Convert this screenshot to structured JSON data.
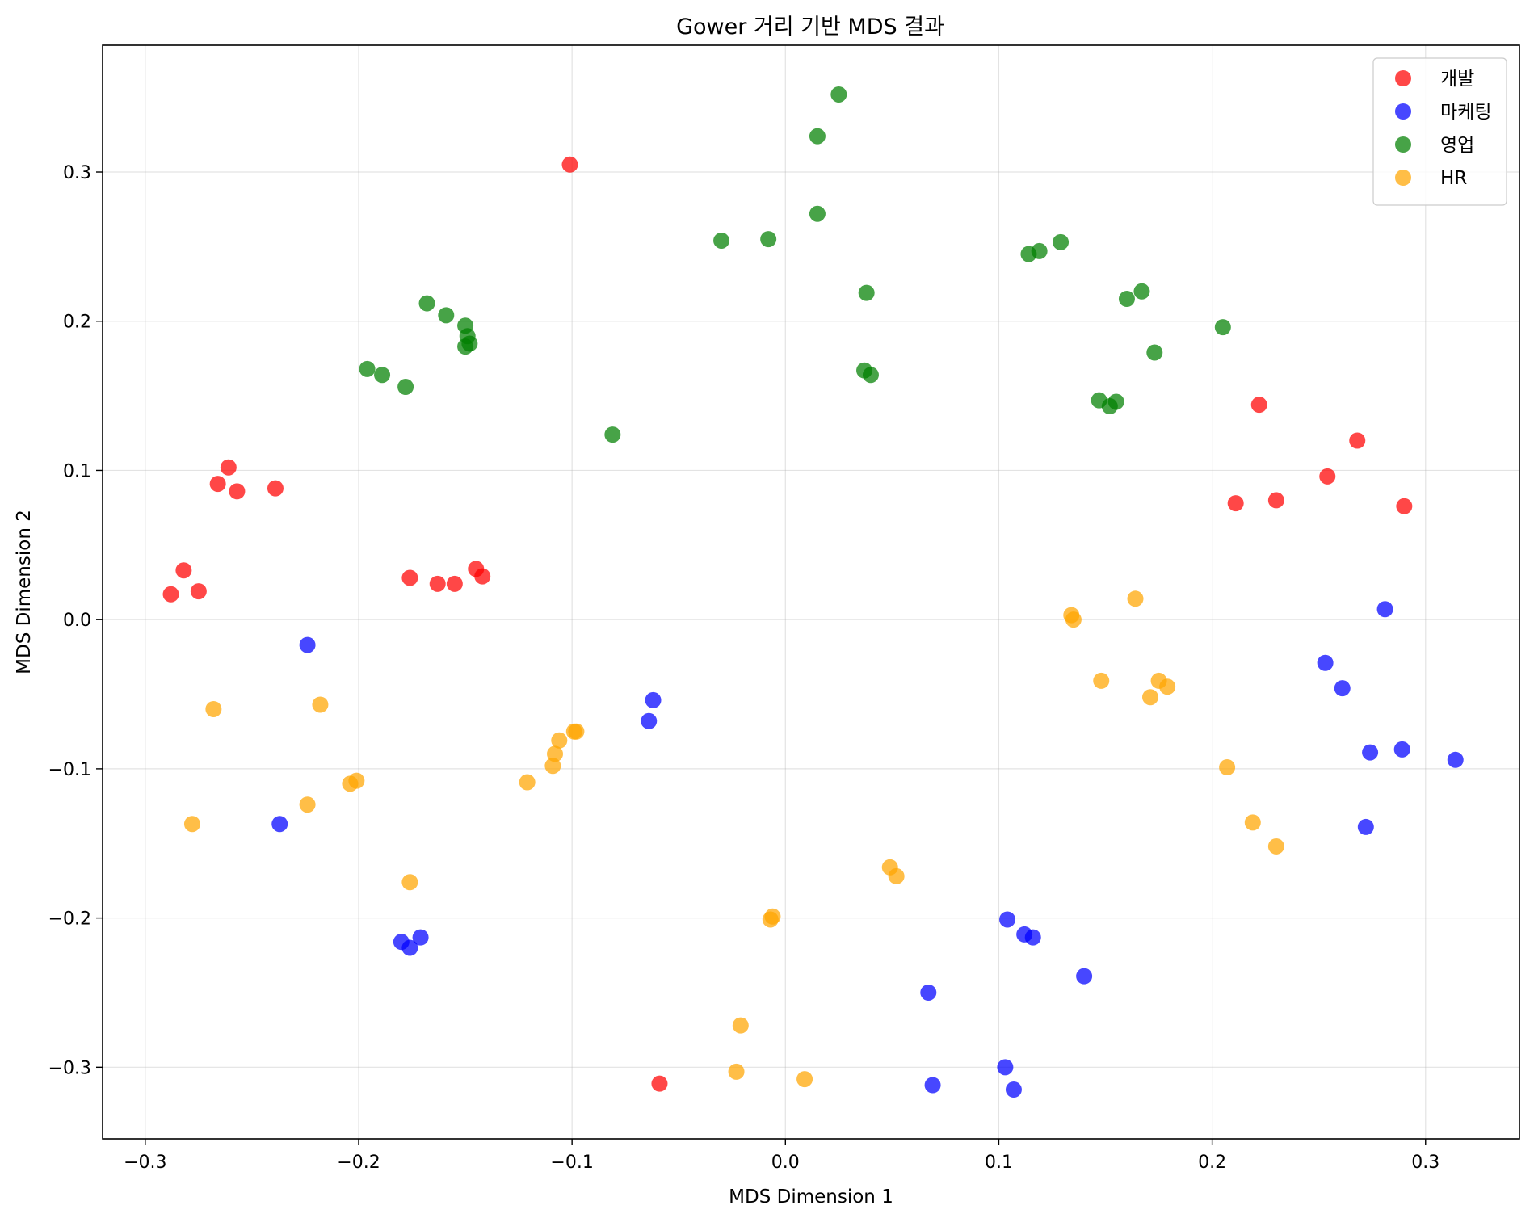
{
  "chart_data": {
    "type": "scatter",
    "title": "Gower 거리 기반 MDS 결과",
    "xlabel": "MDS Dimension 1",
    "ylabel": "MDS Dimension 2",
    "xlim": [
      -0.32,
      0.344
    ],
    "ylim": [
      -0.348,
      0.385
    ],
    "xticks": [
      -0.3,
      -0.2,
      -0.1,
      0.0,
      0.1,
      0.2,
      0.3
    ],
    "yticks": [
      -0.3,
      -0.2,
      -0.1,
      0.0,
      0.1,
      0.2,
      0.3
    ],
    "xtick_labels": [
      "−0.3",
      "−0.2",
      "−0.1",
      "0.0",
      "0.1",
      "0.2",
      "0.3"
    ],
    "ytick_labels": [
      "−0.3",
      "−0.2",
      "−0.1",
      "0.0",
      "0.1",
      "0.2",
      "0.3"
    ],
    "grid": true,
    "legend_position": "top-right",
    "series": [
      {
        "name": "개발",
        "color": "#ff0000",
        "points": [
          [
            -0.101,
            0.305
          ],
          [
            -0.261,
            0.102
          ],
          [
            -0.266,
            0.091
          ],
          [
            -0.257,
            0.086
          ],
          [
            -0.239,
            0.088
          ],
          [
            -0.282,
            0.033
          ],
          [
            -0.288,
            0.017
          ],
          [
            -0.275,
            0.019
          ],
          [
            -0.176,
            0.028
          ],
          [
            -0.163,
            0.024
          ],
          [
            -0.155,
            0.024
          ],
          [
            -0.145,
            0.034
          ],
          [
            -0.142,
            0.029
          ],
          [
            0.222,
            0.144
          ],
          [
            0.268,
            0.12
          ],
          [
            0.254,
            0.096
          ],
          [
            0.211,
            0.078
          ],
          [
            0.23,
            0.08
          ],
          [
            0.29,
            0.076
          ],
          [
            -0.059,
            -0.311
          ]
        ]
      },
      {
        "name": "마케팅",
        "color": "#0000ff",
        "points": [
          [
            -0.224,
            -0.017
          ],
          [
            -0.237,
            -0.137
          ],
          [
            -0.18,
            -0.216
          ],
          [
            -0.176,
            -0.22
          ],
          [
            -0.171,
            -0.213
          ],
          [
            -0.062,
            -0.054
          ],
          [
            -0.064,
            -0.068
          ],
          [
            0.104,
            -0.201
          ],
          [
            0.112,
            -0.211
          ],
          [
            0.116,
            -0.213
          ],
          [
            0.14,
            -0.239
          ],
          [
            0.067,
            -0.25
          ],
          [
            0.069,
            -0.312
          ],
          [
            0.103,
            -0.3
          ],
          [
            0.107,
            -0.315
          ],
          [
            0.281,
            0.007
          ],
          [
            0.253,
            -0.029
          ],
          [
            0.261,
            -0.046
          ],
          [
            0.274,
            -0.089
          ],
          [
            0.289,
            -0.087
          ],
          [
            0.314,
            -0.094
          ],
          [
            0.272,
            -0.139
          ]
        ]
      },
      {
        "name": "영업",
        "color": "#008000",
        "points": [
          [
            0.025,
            0.352
          ],
          [
            0.015,
            0.324
          ],
          [
            0.015,
            0.272
          ],
          [
            -0.03,
            0.254
          ],
          [
            -0.008,
            0.255
          ],
          [
            0.038,
            0.219
          ],
          [
            0.037,
            0.167
          ],
          [
            0.04,
            0.164
          ],
          [
            -0.081,
            0.124
          ],
          [
            -0.168,
            0.212
          ],
          [
            -0.159,
            0.204
          ],
          [
            -0.15,
            0.197
          ],
          [
            -0.149,
            0.19
          ],
          [
            -0.148,
            0.185
          ],
          [
            -0.15,
            0.183
          ],
          [
            -0.196,
            0.168
          ],
          [
            -0.189,
            0.164
          ],
          [
            -0.178,
            0.156
          ],
          [
            0.114,
            0.245
          ],
          [
            0.119,
            0.247
          ],
          [
            0.129,
            0.253
          ],
          [
            0.16,
            0.215
          ],
          [
            0.167,
            0.22
          ],
          [
            0.173,
            0.179
          ],
          [
            0.205,
            0.196
          ],
          [
            0.147,
            0.147
          ],
          [
            0.152,
            0.143
          ],
          [
            0.155,
            0.146
          ]
        ]
      },
      {
        "name": "HR",
        "color": "#ffa500",
        "points": [
          [
            -0.268,
            -0.06
          ],
          [
            -0.218,
            -0.057
          ],
          [
            -0.278,
            -0.137
          ],
          [
            -0.224,
            -0.124
          ],
          [
            -0.204,
            -0.11
          ],
          [
            -0.201,
            -0.108
          ],
          [
            -0.176,
            -0.176
          ],
          [
            -0.121,
            -0.109
          ],
          [
            -0.109,
            -0.098
          ],
          [
            -0.108,
            -0.09
          ],
          [
            -0.106,
            -0.081
          ],
          [
            -0.099,
            -0.075
          ],
          [
            -0.098,
            -0.075
          ],
          [
            -0.006,
            -0.199
          ],
          [
            -0.007,
            -0.201
          ],
          [
            -0.021,
            -0.272
          ],
          [
            -0.023,
            -0.303
          ],
          [
            0.009,
            -0.308
          ],
          [
            0.049,
            -0.166
          ],
          [
            0.052,
            -0.172
          ],
          [
            0.134,
            0.003
          ],
          [
            0.135,
            0.0
          ],
          [
            0.164,
            0.014
          ],
          [
            0.148,
            -0.041
          ],
          [
            0.171,
            -0.052
          ],
          [
            0.175,
            -0.041
          ],
          [
            0.179,
            -0.045
          ],
          [
            0.207,
            -0.099
          ],
          [
            0.219,
            -0.136
          ],
          [
            0.23,
            -0.152
          ]
        ]
      }
    ]
  }
}
